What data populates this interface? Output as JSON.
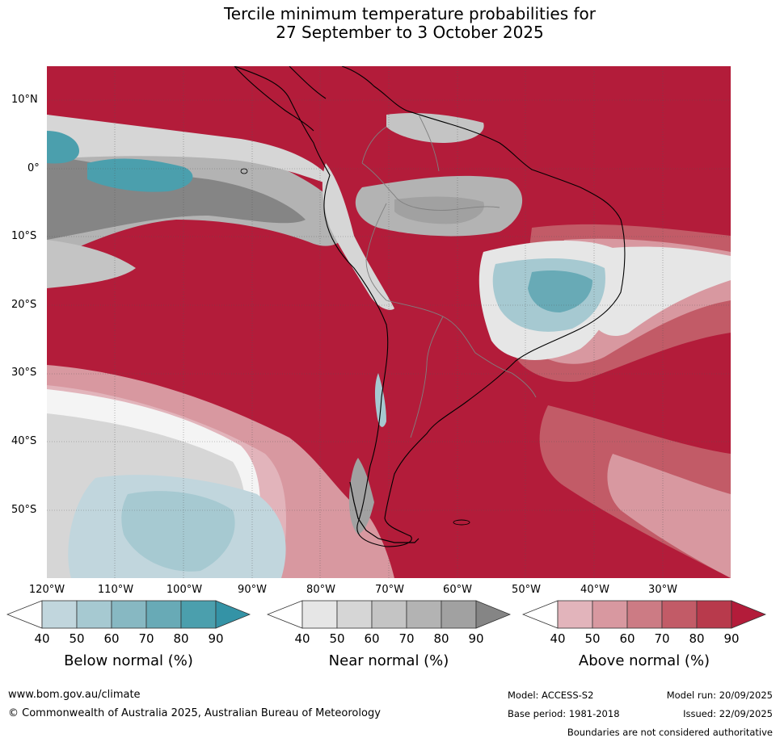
{
  "title": {
    "line1": "Tercile minimum temperature probabilities for",
    "line2": "27 September to 3 October 2025"
  },
  "lat_labels": [
    "10°N",
    "0°",
    "10°S",
    "20°S",
    "30°S",
    "40°S",
    "50°S"
  ],
  "lon_labels": [
    "120°W",
    "110°W",
    "100°W",
    "90°W",
    "80°W",
    "70°W",
    "60°W",
    "50°W",
    "40°W",
    "30°W"
  ],
  "colorbars": [
    {
      "title": "Below normal (%)",
      "ticks": [
        "40",
        "50",
        "60",
        "70",
        "80",
        "90"
      ],
      "colors": [
        "#ffffff",
        "#c1d6dd",
        "#a6c9d1",
        "#87b8c2",
        "#68aab6",
        "#4b9fad",
        "#3493a6"
      ]
    },
    {
      "title": "Near normal (%)",
      "ticks": [
        "40",
        "50",
        "60",
        "70",
        "80",
        "90"
      ],
      "colors": [
        "#ffffff",
        "#e6e6e6",
        "#d6d6d6",
        "#c4c4c4",
        "#b3b3b3",
        "#a1a1a1",
        "#858585"
      ]
    },
    {
      "title": "Above normal (%)",
      "ticks": [
        "40",
        "50",
        "60",
        "70",
        "80",
        "90"
      ],
      "colors": [
        "#ffffff",
        "#e2b4bb",
        "#d898a0",
        "#cc7b84",
        "#c25b67",
        "#b83a4c",
        "#b31c3a"
      ]
    }
  ],
  "footer": {
    "website": "www.bom.gov.au/climate",
    "copyright": "© Commonwealth of Australia 2025, Australian Bureau of Meteorology",
    "model": "Model: ACCESS-S2",
    "base_period": "Base period: 1981-2018",
    "model_run": "Model run: 20/09/2025",
    "issued": "Issued: 22/09/2025",
    "disclaimer": "Boundaries are not considered authoritative"
  }
}
